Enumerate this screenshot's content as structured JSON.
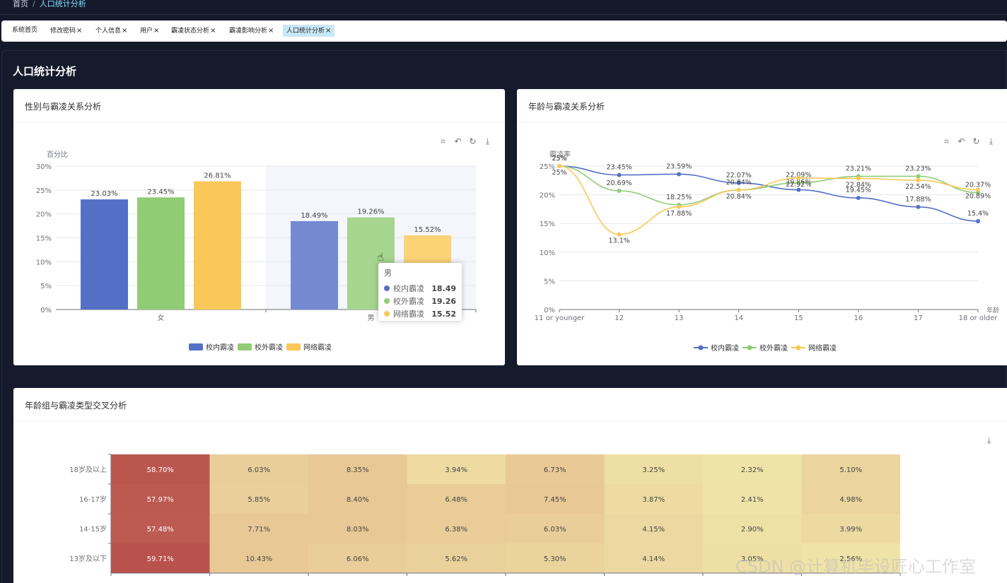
{
  "breadcrumb": {
    "home": "首页",
    "separator": "/",
    "current": "人口统计分析"
  },
  "tabs": [
    {
      "label": "系统首页",
      "closable": false,
      "active": false
    },
    {
      "label": "修改密码",
      "closable": true,
      "active": false
    },
    {
      "label": "个人信息",
      "closable": true,
      "active": false
    },
    {
      "label": "用户",
      "closable": true,
      "active": false
    },
    {
      "label": "霸凌状态分析",
      "closable": true,
      "active": false
    },
    {
      "label": "霸凌影响分析",
      "closable": true,
      "active": false
    },
    {
      "label": "人口统计分析",
      "closable": true,
      "active": true
    }
  ],
  "close_glyph": "×",
  "page_title": "人口统计分析",
  "cards": {
    "gender": {
      "title": "性别与霸凌关系分析"
    },
    "age": {
      "title": "年龄与霸凌关系分析"
    },
    "heatmap": {
      "title": "年龄组与霸凌类型交叉分析"
    }
  },
  "toolbox_icons": [
    "crop-icon",
    "undo-icon",
    "refresh-icon",
    "download-icon"
  ],
  "tooltip": {
    "title": "男",
    "rows": [
      {
        "name": "校内霸凌",
        "value": "18.49",
        "color": "#5470c6"
      },
      {
        "name": "校外霸凌",
        "value": "19.26",
        "color": "#91cc75"
      },
      {
        "name": "网络霸凌",
        "value": "15.52",
        "color": "#fac858"
      }
    ]
  },
  "watermark": "CSDN @计算机毕设匠心工作室",
  "chart_data": [
    {
      "type": "bar",
      "ylabel": "百分比",
      "ylim": [
        0,
        30
      ],
      "yticks": [
        "0%",
        "5%",
        "10%",
        "15%",
        "20%",
        "25%",
        "30%"
      ],
      "categories": [
        "女",
        "男"
      ],
      "series": [
        {
          "name": "校内霸凌",
          "values": [
            23.03,
            18.49
          ],
          "color": "#5470c6"
        },
        {
          "name": "校外霸凌",
          "values": [
            23.45,
            19.26
          ],
          "color": "#91cc75"
        },
        {
          "name": "网络霸凌",
          "values": [
            26.81,
            15.52
          ],
          "color": "#fac858"
        }
      ],
      "legend": "bottom"
    },
    {
      "type": "line",
      "ylabel": "霸凌率",
      "xlabel": "年龄",
      "ylim": [
        0,
        25
      ],
      "yticks": [
        "0%",
        "5%",
        "10%",
        "15%",
        "20%",
        "25%"
      ],
      "categories": [
        "11 or younger",
        "12",
        "13",
        "14",
        "15",
        "16",
        "17",
        "18 or older"
      ],
      "series": [
        {
          "name": "校内霸凌",
          "values": [
            25,
            23.45,
            23.59,
            22.07,
            20.86,
            19.45,
            17.88,
            15.4
          ],
          "labels": [
            "25%",
            "23.45%",
            "23.59%",
            "22.07%",
            "20.86%",
            "19.45%",
            "17.88%",
            "15.4%"
          ],
          "color": "#5470c6"
        },
        {
          "name": "校外霸凌",
          "values": [
            25,
            20.69,
            18.25,
            20.84,
            22.09,
            23.21,
            23.23,
            20.37
          ],
          "labels": [
            "25%",
            "20.69%",
            "18.25%",
            "20.84%",
            "22.09%",
            "23.21%",
            "23.23%",
            "20.37%"
          ],
          "color": "#91cc75"
        },
        {
          "name": "网络霸凌",
          "values": [
            25,
            13.1,
            17.88,
            20.84,
            22.92,
            22.84,
            22.54,
            20.89
          ],
          "labels": [
            "25%",
            "13.1%",
            "17.88%",
            "20.84%",
            "22.92%",
            "22.84%",
            "22.54%",
            "20.89%"
          ],
          "color": "#fac858"
        }
      ],
      "legend": "bottom"
    },
    {
      "type": "heatmap",
      "rows": [
        "18岁及以上",
        "16-17岁",
        "14-15岁",
        "13岁及以下"
      ],
      "values": [
        [
          "58.70%",
          "6.03%",
          "8.35%",
          "3.94%",
          "6.73%",
          "3.25%",
          "2.32%",
          "5.10%"
        ],
        [
          "57.97%",
          "5.85%",
          "8.40%",
          "6.48%",
          "7.45%",
          "3.87%",
          "2.41%",
          "4.98%"
        ],
        [
          "57.48%",
          "7.71%",
          "8.03%",
          "6.38%",
          "6.03%",
          "4.15%",
          "2.90%",
          "3.99%"
        ],
        [
          "59.71%",
          "10.43%",
          "6.06%",
          "5.62%",
          "5.30%",
          "4.14%",
          "3.05%",
          "2.56%"
        ]
      ],
      "numeric": [
        [
          58.7,
          6.03,
          8.35,
          3.94,
          6.73,
          3.25,
          2.32,
          5.1
        ],
        [
          57.97,
          5.85,
          8.4,
          6.48,
          7.45,
          3.87,
          2.41,
          4.98
        ],
        [
          57.48,
          7.71,
          8.03,
          6.38,
          6.03,
          4.15,
          2.9,
          3.99
        ],
        [
          59.71,
          10.43,
          6.06,
          5.62,
          5.3,
          4.14,
          3.05,
          2.56
        ]
      ],
      "colors": {
        "high": "#b9524c",
        "mid": "#e8c895",
        "low": "#efe4a8"
      }
    }
  ]
}
